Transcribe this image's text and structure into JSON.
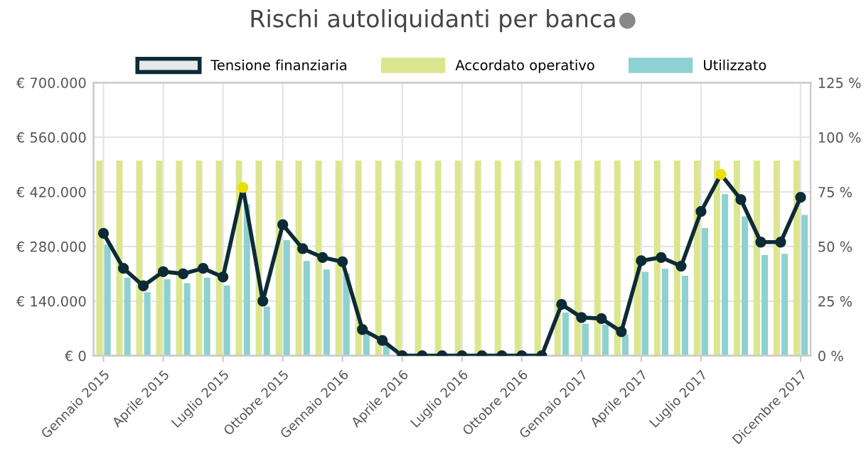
{
  "chart_data": {
    "type": "bar",
    "title": "Rischi autoliquidanti per banca",
    "categories": [
      "Gennaio 2015",
      null,
      null,
      "Aprile 2015",
      null,
      null,
      "Luglio 2015",
      null,
      null,
      "Ottobre 2015",
      null,
      null,
      "Gennaio 2016",
      null,
      null,
      "Aprile 2016",
      null,
      null,
      "Luglio 2016",
      null,
      null,
      "Ottobre 2016",
      null,
      null,
      "Gennaio 2017",
      null,
      null,
      "Aprile 2017",
      null,
      null,
      "Luglio 2017",
      null,
      null,
      null,
      null,
      "Dicembre 2017"
    ],
    "series": [
      {
        "name": "Tensione finanziaria",
        "type": "line",
        "axis": "y2",
        "color": "#0d2b36",
        "colors": [
          "#0d2b36",
          "#0d2b36",
          "#0d2b36",
          "#0d2b36",
          "#0d2b36",
          "#0d2b36",
          "#0d2b36",
          "#e8e000",
          "#0d2b36",
          "#0d2b36",
          "#0d2b36",
          "#0d2b36",
          "#0d2b36",
          "#0d2b36",
          "#0d2b36",
          "#0d2b36",
          "#0d2b36",
          "#0d2b36",
          "#0d2b36",
          "#0d2b36",
          "#0d2b36",
          "#0d2b36",
          "#0d2b36",
          "#0d2b36",
          "#0d2b36",
          "#0d2b36",
          "#0d2b36",
          "#0d2b36",
          "#0d2b36",
          "#0d2b36",
          "#0d2b36",
          "#e8e000",
          "#0d2b36",
          "#0d2b36",
          "#0d2b36",
          "#0d2b36"
        ],
        "values": [
          56,
          40,
          32,
          38.5,
          37.5,
          40,
          36,
          77,
          25,
          60,
          49,
          45,
          43,
          12,
          7,
          0,
          0,
          0,
          0,
          0,
          0,
          0,
          0,
          23.5,
          17.5,
          17,
          11,
          43.5,
          45,
          41,
          66,
          83,
          71.5,
          52,
          52,
          72.5
        ]
      },
      {
        "name": "Accordato operativo",
        "color": "#dce68f",
        "values": [
          500000,
          500000,
          500000,
          500000,
          500000,
          500000,
          500000,
          500000,
          500000,
          500000,
          500000,
          500000,
          500000,
          500000,
          500000,
          500000,
          500000,
          500000,
          500000,
          500000,
          500000,
          500000,
          500000,
          500000,
          500000,
          500000,
          500000,
          500000,
          500000,
          500000,
          500000,
          500000,
          500000,
          500000,
          500000,
          500000
        ]
      },
      {
        "name": "Utilizzato",
        "color": "#8dd1d0",
        "values": [
          285000,
          200000,
          163000,
          196000,
          186000,
          200000,
          180000,
          388000,
          126000,
          296000,
          243000,
          221000,
          211000,
          60000,
          35000,
          0,
          0,
          0,
          0,
          0,
          0,
          0,
          0,
          111000,
          82000,
          80000,
          55000,
          215000,
          223000,
          205000,
          327000,
          414000,
          357000,
          258000,
          261000,
          361000
        ]
      }
    ],
    "ylim": [
      0,
      700000
    ],
    "yticks": [
      {
        "value": 0,
        "label": "€ 0"
      },
      {
        "value": 140000,
        "label": "€ 140.000"
      },
      {
        "value": 280000,
        "label": "€ 280.000"
      },
      {
        "value": 420000,
        "label": "€ 420.000"
      },
      {
        "value": 560000,
        "label": "€ 560.000"
      },
      {
        "value": 700000,
        "label": "€ 700.000"
      }
    ],
    "y2lim": [
      0,
      125
    ],
    "y2ticks": [
      {
        "value": 0,
        "label": "0 %"
      },
      {
        "value": 25,
        "label": "25 %"
      },
      {
        "value": 50,
        "label": "50 %"
      },
      {
        "value": 75,
        "label": "75 %"
      },
      {
        "value": 100,
        "label": "100 %"
      },
      {
        "value": 125,
        "label": "125 %"
      }
    ],
    "grid": true,
    "legend": "top",
    "marker": "circle",
    "line_style": "solid"
  }
}
